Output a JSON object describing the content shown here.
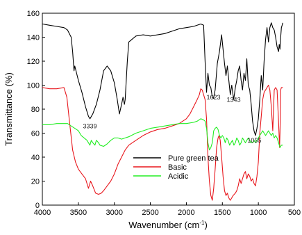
{
  "chart_data": {
    "type": "line",
    "xlabel": "Wavenumber (cm",
    "xlabel_sup": "-1",
    "xlabel_suffix": ")",
    "ylabel": "Transmittance (%)",
    "xlim": [
      4000,
      500
    ],
    "ylim": [
      0,
      160
    ],
    "x_axis_reversed": true,
    "x_ticks": [
      4000,
      3500,
      3000,
      2500,
      2000,
      1500,
      1000,
      500
    ],
    "y_ticks": [
      0,
      20,
      40,
      60,
      80,
      100,
      120,
      140,
      160
    ],
    "grid": false,
    "legend_position": "lower-center",
    "annotations": [
      {
        "text": "3339",
        "x": 3339,
        "y": 70
      },
      {
        "text": "1623",
        "x": 1623,
        "y": 94
      },
      {
        "text": "1343",
        "x": 1343,
        "y": 92
      },
      {
        "text": "1055",
        "x": 1055,
        "y": 58
      }
    ],
    "series": [
      {
        "name": "Pure green tea",
        "color": "#000000",
        "points": [
          [
            4000,
            151
          ],
          [
            3900,
            150
          ],
          [
            3800,
            149
          ],
          [
            3700,
            148
          ],
          [
            3650,
            146
          ],
          [
            3600,
            140
          ],
          [
            3580,
            128
          ],
          [
            3560,
            112
          ],
          [
            3550,
            116
          ],
          [
            3500,
            104
          ],
          [
            3450,
            94
          ],
          [
            3400,
            82
          ],
          [
            3360,
            74
          ],
          [
            3339,
            72
          ],
          [
            3300,
            76
          ],
          [
            3250,
            84
          ],
          [
            3200,
            96
          ],
          [
            3150,
            112
          ],
          [
            3100,
            116
          ],
          [
            3050,
            112
          ],
          [
            3000,
            102
          ],
          [
            2960,
            88
          ],
          [
            2930,
            76
          ],
          [
            2900,
            84
          ],
          [
            2880,
            90
          ],
          [
            2860,
            84
          ],
          [
            2850,
            88
          ],
          [
            2820,
            120
          ],
          [
            2800,
            136
          ],
          [
            2700,
            141
          ],
          [
            2600,
            142
          ],
          [
            2500,
            141
          ],
          [
            2400,
            142
          ],
          [
            2300,
            143
          ],
          [
            2200,
            145
          ],
          [
            2100,
            147
          ],
          [
            2000,
            148
          ],
          [
            1900,
            149
          ],
          [
            1800,
            151
          ],
          [
            1760,
            150
          ],
          [
            1740,
            120
          ],
          [
            1720,
            94
          ],
          [
            1700,
            110
          ],
          [
            1680,
            100
          ],
          [
            1660,
            98
          ],
          [
            1640,
            90
          ],
          [
            1623,
            89
          ],
          [
            1600,
            96
          ],
          [
            1570,
            118
          ],
          [
            1540,
            128
          ],
          [
            1510,
            142
          ],
          [
            1490,
            130
          ],
          [
            1470,
            118
          ],
          [
            1450,
            108
          ],
          [
            1430,
            116
          ],
          [
            1410,
            104
          ],
          [
            1390,
            92
          ],
          [
            1370,
            100
          ],
          [
            1343,
            88
          ],
          [
            1320,
            98
          ],
          [
            1300,
            104
          ],
          [
            1280,
            112
          ],
          [
            1260,
            116
          ],
          [
            1240,
            104
          ],
          [
            1220,
            96
          ],
          [
            1200,
            110
          ],
          [
            1180,
            104
          ],
          [
            1160,
            122
          ],
          [
            1140,
            100
          ],
          [
            1120,
            96
          ],
          [
            1100,
            84
          ],
          [
            1080,
            70
          ],
          [
            1060,
            62
          ],
          [
            1040,
            58
          ],
          [
            1020,
            64
          ],
          [
            1000,
            72
          ],
          [
            980,
            88
          ],
          [
            960,
            108
          ],
          [
            940,
            96
          ],
          [
            920,
            120
          ],
          [
            900,
            138
          ],
          [
            880,
            148
          ],
          [
            860,
            136
          ],
          [
            840,
            148
          ],
          [
            820,
            152
          ],
          [
            800,
            148
          ],
          [
            780,
            146
          ],
          [
            760,
            140
          ],
          [
            740,
            132
          ],
          [
            720,
            128
          ],
          [
            710,
            134
          ],
          [
            700,
            130
          ],
          [
            690,
            140
          ],
          [
            680,
            148
          ],
          [
            670,
            150
          ],
          [
            660,
            152
          ]
        ]
      },
      {
        "name": "Basic",
        "color": "#e8161c",
        "points": [
          [
            4000,
            98
          ],
          [
            3900,
            97
          ],
          [
            3800,
            97
          ],
          [
            3700,
            98
          ],
          [
            3660,
            90
          ],
          [
            3620,
            68
          ],
          [
            3580,
            46
          ],
          [
            3540,
            36
          ],
          [
            3500,
            30
          ],
          [
            3450,
            26
          ],
          [
            3400,
            22
          ],
          [
            3360,
            14
          ],
          [
            3330,
            20
          ],
          [
            3300,
            16
          ],
          [
            3260,
            10
          ],
          [
            3220,
            9
          ],
          [
            3180,
            10
          ],
          [
            3150,
            12
          ],
          [
            3100,
            16
          ],
          [
            3050,
            20
          ],
          [
            3000,
            26
          ],
          [
            2950,
            34
          ],
          [
            2900,
            40
          ],
          [
            2850,
            46
          ],
          [
            2800,
            50
          ],
          [
            2700,
            54
          ],
          [
            2600,
            58
          ],
          [
            2500,
            61
          ],
          [
            2400,
            63
          ],
          [
            2300,
            64
          ],
          [
            2200,
            66
          ],
          [
            2100,
            68
          ],
          [
            2000,
            72
          ],
          [
            1950,
            76
          ],
          [
            1900,
            82
          ],
          [
            1850,
            88
          ],
          [
            1820,
            92
          ],
          [
            1800,
            97
          ],
          [
            1780,
            96
          ],
          [
            1760,
            92
          ],
          [
            1740,
            88
          ],
          [
            1720,
            72
          ],
          [
            1700,
            40
          ],
          [
            1680,
            20
          ],
          [
            1660,
            8
          ],
          [
            1640,
            4
          ],
          [
            1620,
            14
          ],
          [
            1600,
            30
          ],
          [
            1580,
            48
          ],
          [
            1560,
            56
          ],
          [
            1545,
            58
          ],
          [
            1530,
            54
          ],
          [
            1510,
            40
          ],
          [
            1490,
            24
          ],
          [
            1470,
            12
          ],
          [
            1450,
            8
          ],
          [
            1430,
            10
          ],
          [
            1410,
            6
          ],
          [
            1390,
            4
          ],
          [
            1370,
            6
          ],
          [
            1350,
            8
          ],
          [
            1320,
            10
          ],
          [
            1300,
            12
          ],
          [
            1280,
            16
          ],
          [
            1260,
            22
          ],
          [
            1240,
            18
          ],
          [
            1220,
            22
          ],
          [
            1200,
            26
          ],
          [
            1180,
            28
          ],
          [
            1160,
            22
          ],
          [
            1140,
            26
          ],
          [
            1120,
            24
          ],
          [
            1100,
            20
          ],
          [
            1080,
            22
          ],
          [
            1060,
            18
          ],
          [
            1040,
            16
          ],
          [
            1020,
            24
          ],
          [
            1000,
            36
          ],
          [
            980,
            60
          ],
          [
            960,
            74
          ],
          [
            940,
            88
          ],
          [
            920,
            94
          ],
          [
            900,
            96
          ],
          [
            880,
            98
          ],
          [
            860,
            100
          ],
          [
            840,
            96
          ],
          [
            820,
            82
          ],
          [
            800,
            62
          ],
          [
            780,
            96
          ],
          [
            760,
            98
          ],
          [
            740,
            96
          ],
          [
            720,
            70
          ],
          [
            705,
            48
          ],
          [
            700,
            60
          ],
          [
            690,
            96
          ],
          [
            680,
            98
          ],
          [
            660,
            98
          ]
        ]
      },
      {
        "name": "Acidic",
        "color": "#22ee22",
        "points": [
          [
            4000,
            67
          ],
          [
            3900,
            67
          ],
          [
            3800,
            68
          ],
          [
            3700,
            68
          ],
          [
            3650,
            68
          ],
          [
            3600,
            66
          ],
          [
            3550,
            64
          ],
          [
            3500,
            62
          ],
          [
            3460,
            58
          ],
          [
            3420,
            56
          ],
          [
            3380,
            54
          ],
          [
            3340,
            50
          ],
          [
            3320,
            54
          ],
          [
            3300,
            52
          ],
          [
            3270,
            50
          ],
          [
            3250,
            54
          ],
          [
            3220,
            52
          ],
          [
            3200,
            50
          ],
          [
            3150,
            49
          ],
          [
            3100,
            51
          ],
          [
            3050,
            54
          ],
          [
            3000,
            56
          ],
          [
            2950,
            56
          ],
          [
            2900,
            55
          ],
          [
            2850,
            56
          ],
          [
            2800,
            57
          ],
          [
            2700,
            60
          ],
          [
            2600,
            62
          ],
          [
            2500,
            64
          ],
          [
            2400,
            65
          ],
          [
            2300,
            66
          ],
          [
            2200,
            67
          ],
          [
            2100,
            68
          ],
          [
            2000,
            68
          ],
          [
            1900,
            69
          ],
          [
            1850,
            70
          ],
          [
            1800,
            72
          ],
          [
            1760,
            71
          ],
          [
            1740,
            70
          ],
          [
            1720,
            64
          ],
          [
            1700,
            52
          ],
          [
            1680,
            46
          ],
          [
            1660,
            48
          ],
          [
            1640,
            52
          ],
          [
            1620,
            62
          ],
          [
            1600,
            64
          ],
          [
            1580,
            65
          ],
          [
            1560,
            63
          ],
          [
            1540,
            58
          ],
          [
            1520,
            56
          ],
          [
            1500,
            58
          ],
          [
            1480,
            56
          ],
          [
            1460,
            52
          ],
          [
            1440,
            56
          ],
          [
            1420,
            54
          ],
          [
            1400,
            50
          ],
          [
            1380,
            52
          ],
          [
            1360,
            54
          ],
          [
            1340,
            50
          ],
          [
            1320,
            52
          ],
          [
            1300,
            56
          ],
          [
            1280,
            54
          ],
          [
            1260,
            50
          ],
          [
            1240,
            52
          ],
          [
            1220,
            56
          ],
          [
            1200,
            54
          ],
          [
            1180,
            52
          ],
          [
            1160,
            54
          ],
          [
            1140,
            56
          ],
          [
            1120,
            54
          ],
          [
            1100,
            52
          ],
          [
            1080,
            52
          ],
          [
            1060,
            54
          ],
          [
            1040,
            52
          ],
          [
            1020,
            54
          ],
          [
            1000,
            56
          ],
          [
            980,
            58
          ],
          [
            960,
            60
          ],
          [
            940,
            62
          ],
          [
            920,
            60
          ],
          [
            900,
            58
          ],
          [
            880,
            60
          ],
          [
            860,
            62
          ],
          [
            840,
            60
          ],
          [
            820,
            58
          ],
          [
            800,
            60
          ],
          [
            780,
            56
          ],
          [
            760,
            58
          ],
          [
            740,
            56
          ],
          [
            720,
            52
          ],
          [
            700,
            48
          ],
          [
            680,
            50
          ],
          [
            660,
            50
          ]
        ]
      }
    ]
  }
}
